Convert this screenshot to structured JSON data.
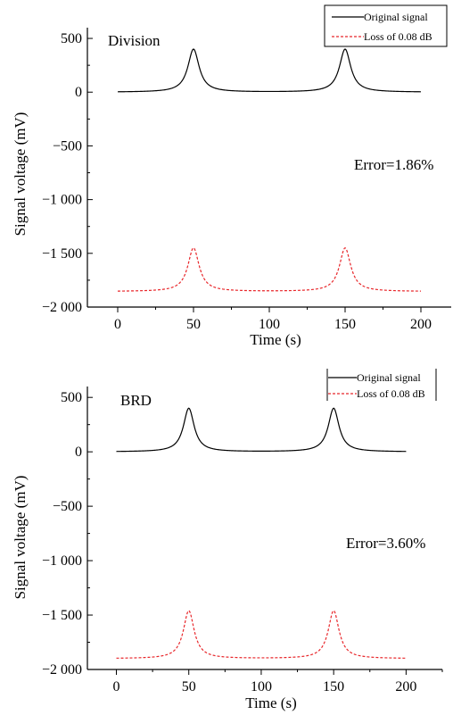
{
  "chart_data": [
    {
      "type": "line",
      "panel_label": "Division",
      "error_text": "Error=1.86%",
      "xlabel": "Time (s)",
      "ylabel": "Signal voltage (mV)",
      "xlim": [
        -20,
        220
      ],
      "ylim": [
        -2000,
        600
      ],
      "xticks": [
        0,
        50,
        100,
        150,
        200
      ],
      "xtick_labels": [
        "0",
        "50",
        "100",
        "150",
        "200"
      ],
      "yticks": [
        500,
        0,
        -500,
        -1000,
        -1500,
        -2000
      ],
      "ytick_labels": [
        "500",
        "0",
        "−500",
        "−1 000",
        "−1 500",
        "−2 000"
      ],
      "legend": {
        "placement": "top-right",
        "entries": [
          "Original signal",
          "Loss of 0.08 dB"
        ]
      },
      "series": [
        {
          "name": "Original signal",
          "color": "#000000",
          "style": "solid",
          "baseline": 0,
          "peaks": [
            [
              50,
              400
            ],
            [
              150,
              400
            ]
          ],
          "x_range": [
            0,
            200
          ]
        },
        {
          "name": "Loss of 0.08 dB",
          "color": "#e8262a",
          "style": "dashed",
          "baseline": -1855,
          "peaks": [
            [
              50,
              -1450
            ],
            [
              150,
              -1450
            ]
          ],
          "x_range": [
            0,
            200
          ]
        }
      ]
    },
    {
      "type": "line",
      "panel_label": "BRD",
      "error_text": "Error=3.60%",
      "xlabel": "Time (s)",
      "ylabel": "Signal voltage (mV)",
      "xlim": [
        -20,
        225
      ],
      "ylim": [
        -2000,
        600
      ],
      "xticks": [
        0,
        50,
        100,
        150,
        200
      ],
      "xtick_labels": [
        "0",
        "50",
        "100",
        "150",
        "200"
      ],
      "yticks": [
        500,
        0,
        -500,
        -1000,
        -1500,
        -2000
      ],
      "ytick_labels": [
        "500",
        "0",
        "−500",
        "−1 000",
        "−1 500",
        "−2 000"
      ],
      "legend": {
        "placement": "top-right",
        "entries": [
          "Original signal",
          "Loss of 0.08 dB"
        ]
      },
      "series": [
        {
          "name": "Original signal",
          "color": "#000000",
          "style": "solid",
          "baseline": 0,
          "peaks": [
            [
              50,
              400
            ],
            [
              150,
              400
            ]
          ],
          "x_range": [
            0,
            200
          ]
        },
        {
          "name": "Loss of 0.08 dB",
          "color": "#e8262a",
          "style": "dashed",
          "baseline": -1900,
          "peaks": [
            [
              50,
              -1460
            ],
            [
              150,
              -1460
            ]
          ],
          "x_range": [
            0,
            200
          ]
        }
      ]
    }
  ]
}
